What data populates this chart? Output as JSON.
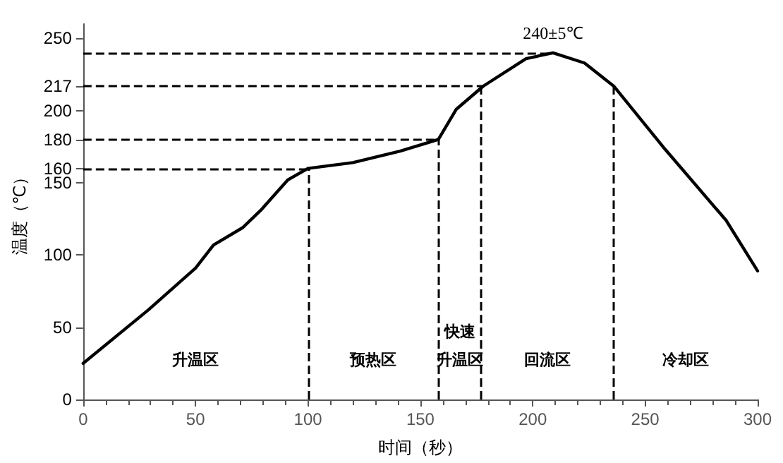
{
  "chart_data": {
    "type": "line",
    "xlabel": "时间（秒）",
    "ylabel": "温度（℃）",
    "x": [
      0,
      29,
      50,
      58,
      71,
      79,
      91,
      100,
      120,
      141,
      158,
      166,
      178,
      197,
      209,
      223,
      236,
      259,
      286,
      300
    ],
    "series": [
      {
        "color": "#000000",
        "values": [
          25,
          62,
          91,
          107,
          119,
          131,
          152,
          160,
          164,
          172,
          180,
          201,
          217,
          236,
          240,
          233,
          217,
          173,
          124,
          89
        ]
      }
    ],
    "xlim": [
      0,
      300
    ],
    "xticks": [
      0,
      50,
      100,
      150,
      200,
      250,
      300
    ],
    "ylim": [
      0,
      260
    ],
    "yticks": [
      0,
      50,
      100,
      150,
      160,
      180,
      200,
      217,
      250
    ],
    "ref_lines": [
      {
        "axis": "y",
        "value": 160,
        "line_style": "dashed"
      },
      {
        "axis": "y",
        "value": 180,
        "line_style": "dashed"
      },
      {
        "axis": "y",
        "value": 217,
        "line_style": "dashed"
      },
      {
        "axis": "y",
        "value": 240,
        "line_style": "dashed"
      },
      {
        "axis": "x",
        "value": 100,
        "line_style": "dashed"
      },
      {
        "axis": "x",
        "value": 158,
        "line_style": "dashed"
      },
      {
        "axis": "x",
        "value": 177,
        "line_style": "dashed"
      },
      {
        "axis": "x",
        "value": 236,
        "line_style": "dashed"
      }
    ],
    "annotations": [
      {
        "text": "240±5℃",
        "x": 209,
        "y": 240
      },
      "升温区",
      "预热区",
      "快速升温区",
      "回流区",
      "冷却区"
    ],
    "grid": false,
    "marker": "none",
    "line_style": "solid"
  }
}
